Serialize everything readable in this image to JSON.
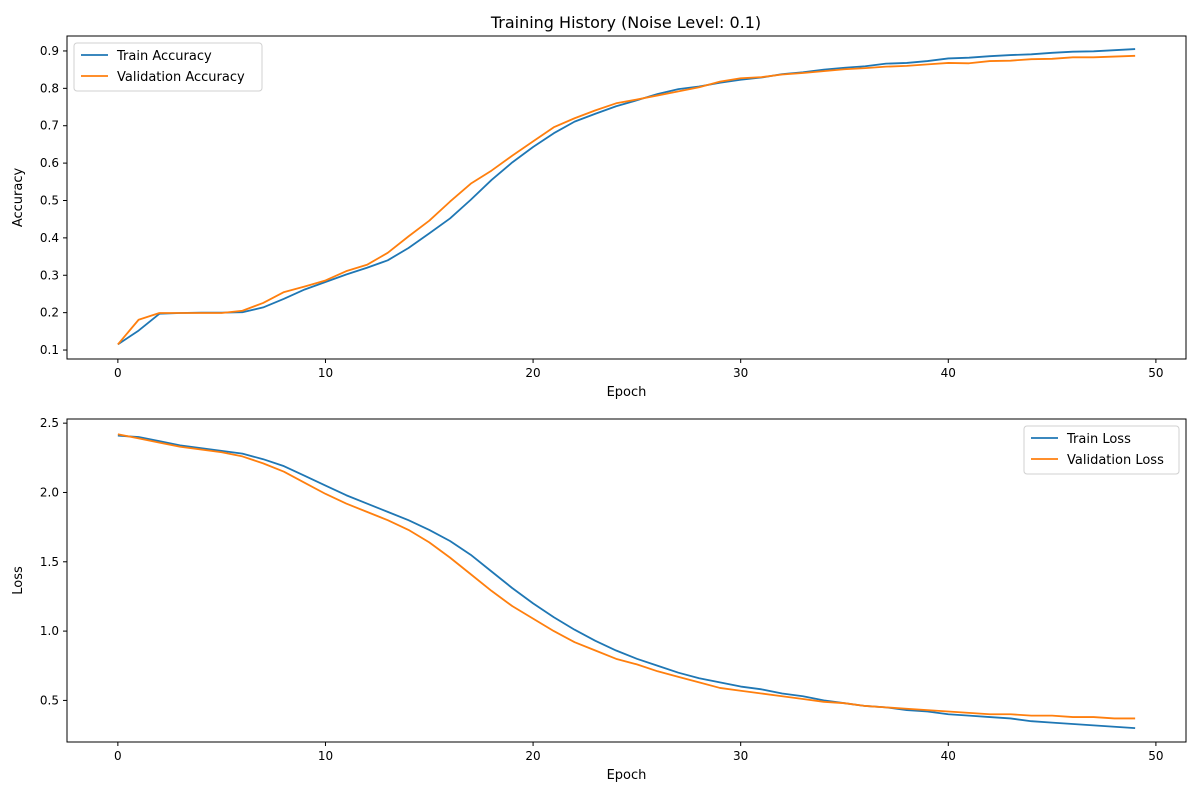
{
  "chart_data": [
    {
      "type": "line",
      "title": "Training History (Noise Level: 0.1)",
      "xlabel": "Epoch",
      "ylabel": "Accuracy",
      "xlim": [
        -2.45,
        51.45
      ],
      "ylim": [
        0.076,
        0.94
      ],
      "xticks": [
        0,
        10,
        20,
        30,
        40,
        50
      ],
      "yticks": [
        0.1,
        0.2,
        0.3,
        0.4,
        0.5,
        0.6,
        0.7,
        0.8,
        0.9
      ],
      "legend": "top-left",
      "grid": false,
      "x": [
        0,
        1,
        2,
        3,
        4,
        5,
        6,
        7,
        8,
        9,
        10,
        11,
        12,
        13,
        14,
        15,
        16,
        17,
        18,
        19,
        20,
        21,
        22,
        23,
        24,
        25,
        26,
        27,
        28,
        29,
        30,
        31,
        32,
        33,
        34,
        35,
        36,
        37,
        38,
        39,
        40,
        41,
        42,
        43,
        44,
        45,
        46,
        47,
        48,
        49
      ],
      "series": [
        {
          "name": "Train Accuracy",
          "color": "#1f77b4",
          "values": [
            0.115,
            0.152,
            0.197,
            0.199,
            0.2,
            0.2,
            0.201,
            0.214,
            0.237,
            0.262,
            0.282,
            0.302,
            0.32,
            0.34,
            0.373,
            0.412,
            0.452,
            0.502,
            0.555,
            0.602,
            0.643,
            0.68,
            0.711,
            0.732,
            0.752,
            0.768,
            0.785,
            0.798,
            0.805,
            0.815,
            0.823,
            0.829,
            0.838,
            0.843,
            0.85,
            0.855,
            0.859,
            0.866,
            0.868,
            0.873,
            0.88,
            0.882,
            0.886,
            0.889,
            0.891,
            0.895,
            0.898,
            0.899,
            0.902,
            0.905
          ]
        },
        {
          "name": "Validation Accuracy",
          "color": "#ff7f0e",
          "values": [
            0.115,
            0.181,
            0.199,
            0.199,
            0.199,
            0.199,
            0.205,
            0.226,
            0.255,
            0.27,
            0.286,
            0.311,
            0.328,
            0.36,
            0.404,
            0.446,
            0.497,
            0.545,
            0.58,
            0.62,
            0.658,
            0.696,
            0.72,
            0.741,
            0.76,
            0.77,
            0.781,
            0.792,
            0.803,
            0.818,
            0.827,
            0.83,
            0.837,
            0.841,
            0.846,
            0.851,
            0.854,
            0.858,
            0.86,
            0.864,
            0.868,
            0.867,
            0.873,
            0.874,
            0.878,
            0.879,
            0.883,
            0.883,
            0.885,
            0.887
          ]
        }
      ]
    },
    {
      "type": "line",
      "title": "",
      "xlabel": "Epoch",
      "ylabel": "Loss",
      "xlim": [
        -2.45,
        51.45
      ],
      "ylim": [
        0.2,
        2.53
      ],
      "xticks": [
        0,
        10,
        20,
        30,
        40,
        50
      ],
      "yticks": [
        0.5,
        1.0,
        1.5,
        2.0,
        2.5
      ],
      "legend": "top-right",
      "grid": false,
      "x": [
        0,
        1,
        2,
        3,
        4,
        5,
        6,
        7,
        8,
        9,
        10,
        11,
        12,
        13,
        14,
        15,
        16,
        17,
        18,
        19,
        20,
        21,
        22,
        23,
        24,
        25,
        26,
        27,
        28,
        29,
        30,
        31,
        32,
        33,
        34,
        35,
        36,
        37,
        38,
        39,
        40,
        41,
        42,
        43,
        44,
        45,
        46,
        47,
        48,
        49
      ],
      "series": [
        {
          "name": "Train Loss",
          "color": "#1f77b4",
          "values": [
            2.41,
            2.4,
            2.37,
            2.34,
            2.32,
            2.3,
            2.28,
            2.24,
            2.19,
            2.12,
            2.05,
            1.98,
            1.92,
            1.86,
            1.8,
            1.73,
            1.65,
            1.55,
            1.43,
            1.31,
            1.2,
            1.1,
            1.01,
            0.93,
            0.86,
            0.8,
            0.75,
            0.7,
            0.66,
            0.63,
            0.6,
            0.58,
            0.55,
            0.53,
            0.5,
            0.48,
            0.46,
            0.45,
            0.43,
            0.42,
            0.4,
            0.39,
            0.38,
            0.37,
            0.35,
            0.34,
            0.33,
            0.32,
            0.31,
            0.3
          ]
        },
        {
          "name": "Validation Loss",
          "color": "#ff7f0e",
          "values": [
            2.42,
            2.39,
            2.36,
            2.33,
            2.31,
            2.29,
            2.26,
            2.21,
            2.15,
            2.07,
            1.99,
            1.92,
            1.86,
            1.8,
            1.73,
            1.64,
            1.53,
            1.41,
            1.29,
            1.18,
            1.09,
            1.0,
            0.92,
            0.86,
            0.8,
            0.76,
            0.71,
            0.67,
            0.63,
            0.59,
            0.57,
            0.55,
            0.53,
            0.51,
            0.49,
            0.48,
            0.46,
            0.45,
            0.44,
            0.43,
            0.42,
            0.41,
            0.4,
            0.4,
            0.39,
            0.39,
            0.38,
            0.38,
            0.37,
            0.37
          ]
        }
      ]
    }
  ]
}
